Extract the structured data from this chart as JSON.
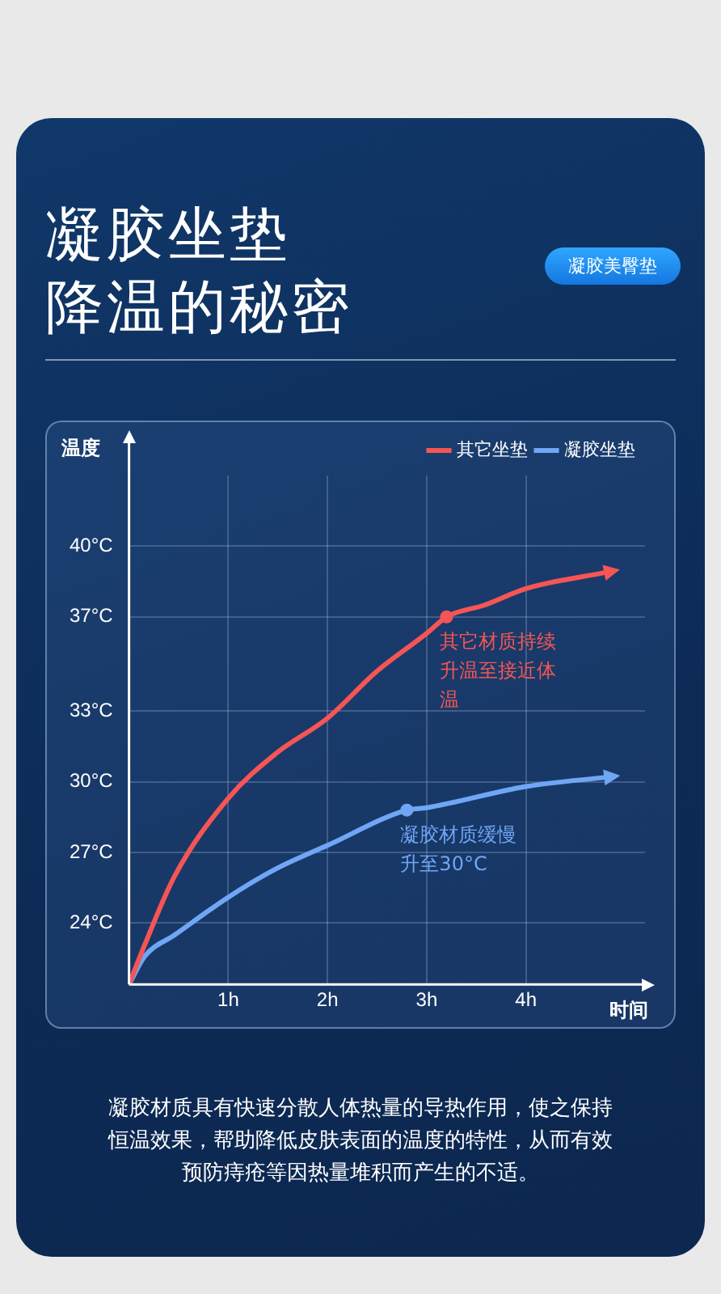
{
  "chart_data": {
    "type": "line",
    "title": "凝胶坐垫",
    "subtitle": "降温的秘密",
    "xlabel": "时间",
    "ylabel": "温度",
    "xlim": [
      0,
      5.2
    ],
    "xticks": [
      {
        "value": 1,
        "label": "1h"
      },
      {
        "value": 2,
        "label": "2h"
      },
      {
        "value": 3,
        "label": "3h"
      },
      {
        "value": 4,
        "label": "4h"
      }
    ],
    "ylim": [
      21.4,
      43
    ],
    "yticks": [
      {
        "value": 24,
        "label": "24°C"
      },
      {
        "value": 27,
        "label": "27°C"
      },
      {
        "value": 30,
        "label": "30°C"
      },
      {
        "value": 33,
        "label": "33°C"
      },
      {
        "value": 37,
        "label": "37°C"
      },
      {
        "value": 40,
        "label": "40°C"
      }
    ],
    "grid": true,
    "legend": "top right",
    "line_style": "solid",
    "series": [
      {
        "name": "其它坐垫",
        "color": "#f55555",
        "x": [
          0,
          0.16,
          0.46,
          1,
          1.48,
          2,
          2.5,
          3,
          3.2,
          3.58,
          4,
          4.82
        ],
        "values": [
          21.4,
          23.1,
          26.0,
          29.3,
          31.2,
          32.7,
          34.7,
          36.3,
          37,
          37.5,
          38.2,
          38.9
        ]
      },
      {
        "name": "凝胶坐垫",
        "color": "#6fa6f5",
        "x": [
          0,
          0.16,
          0.46,
          1,
          1.48,
          2,
          2.8,
          3,
          4,
          4.82
        ],
        "values": [
          21.4,
          22.6,
          23.5,
          25.1,
          26.3,
          27.3,
          28.8,
          28.9,
          29.8,
          30.2
        ]
      }
    ],
    "annotations": [
      {
        "text": "其它材质持续升温至接近体温",
        "x": 3.2,
        "y": 37
      },
      {
        "text": "凝胶材质缓慢升至30°C",
        "x": 2.8,
        "y": 28.8
      },
      "凝胶美臀垫",
      "凝胶材质具有快速分散人体热量的导热作用，使之保持恒温效果，帮助降低皮肤表面的温度的特性，从而有效预防痔疮等因热量堆积而产生的不适。"
    ]
  }
}
